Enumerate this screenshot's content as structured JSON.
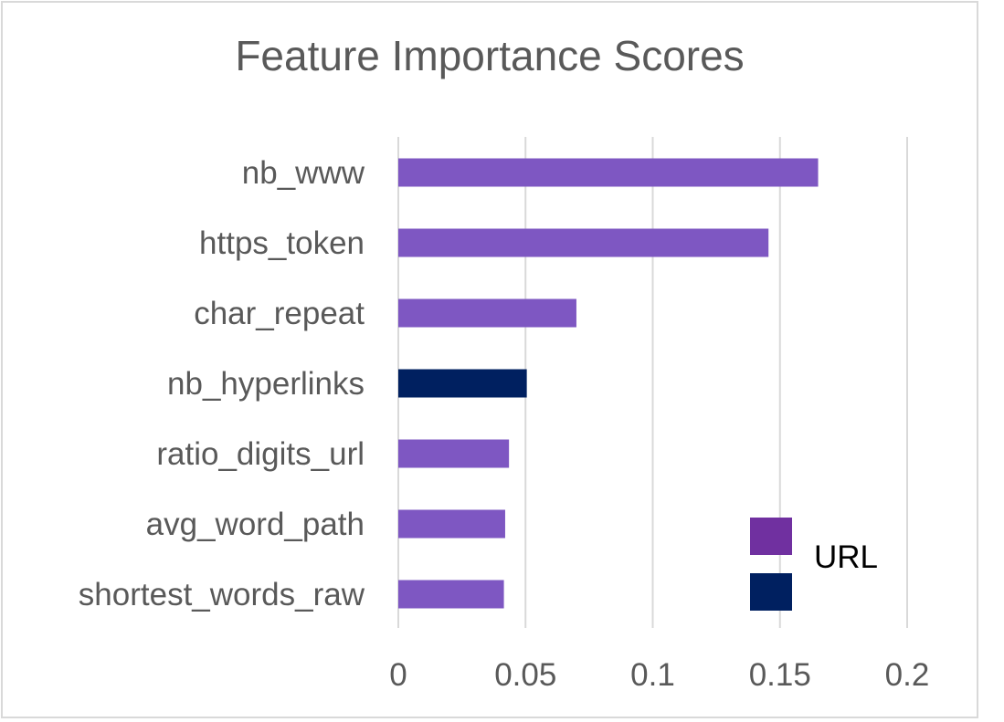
{
  "chart_data": {
    "type": "bar",
    "orientation": "horizontal",
    "title": "Feature Importance Scores",
    "xlabel": "",
    "ylabel": "",
    "xlim": [
      0,
      0.2
    ],
    "x_ticks": [
      0,
      0.05,
      0.1,
      0.15,
      0.2
    ],
    "x_tick_labels": [
      "0",
      "0.05",
      "0.1",
      "0.15",
      "0.2"
    ],
    "grid": "vertical",
    "categories": [
      "nb_www",
      "https_token",
      "char_repeat",
      "nb_hyperlinks",
      "ratio_digits_url",
      "avg_word_path",
      "shortest_words_raw"
    ],
    "values": [
      0.165,
      0.1455,
      0.07,
      0.0505,
      0.0435,
      0.042,
      0.0415
    ],
    "bar_colors": [
      "#7e57c2",
      "#7e57c2",
      "#7e57c2",
      "#002060",
      "#7e57c2",
      "#7e57c2",
      "#7e57c2"
    ],
    "legend": {
      "placement": "bottom-right",
      "items": [
        {
          "label": "URL",
          "color": "#7030a0"
        },
        {
          "label": "",
          "color": "#002060"
        }
      ]
    }
  },
  "colors": {
    "grid": "#d9d9d9",
    "text": "#595959",
    "border": "#d9d9d9"
  }
}
